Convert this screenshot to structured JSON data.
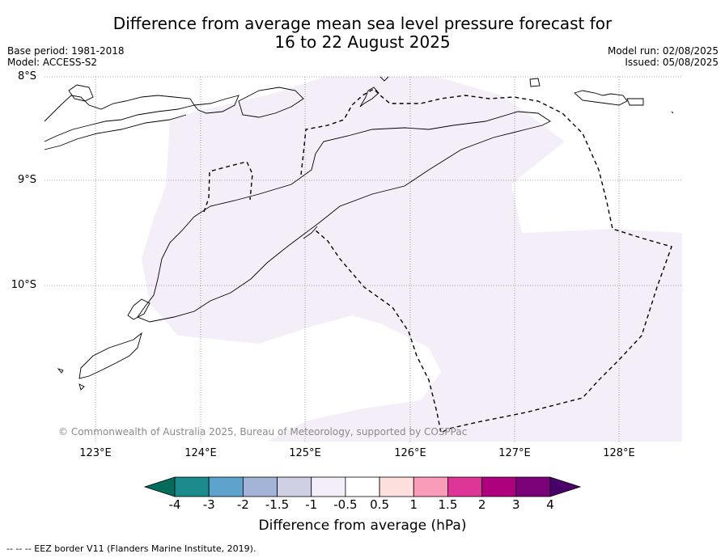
{
  "header": {
    "title_line1": "Difference from average mean sea level pressure forecast for",
    "title_line2": "16 to 22 August 2025",
    "base_period": "Base period: 1981-2018",
    "model": "Model: ACCESS-S2",
    "model_run": "Model run: 02/08/2025",
    "issued": "Issued: 05/08/2025"
  },
  "axes": {
    "lat_labels": [
      "8°S",
      "9°S",
      "10°S"
    ],
    "lon_labels": [
      "123°E",
      "124°E",
      "125°E",
      "126°E",
      "127°E",
      "128°E"
    ]
  },
  "map": {
    "lon_range": [
      122.55,
      128.6
    ],
    "lat_range": [
      -11.5,
      -8.0
    ],
    "anomaly_class_shown": "-1 to -0.5",
    "anomaly_fill_color": "#f3eef7",
    "eez_border_style": "dashed"
  },
  "copyright": "© Commonwealth of Australia 2025, Bureau of Meteorology, supported by COSPPac",
  "colorbar": {
    "ticks": [
      "-4",
      "-3",
      "-2",
      "-1.5",
      "-1",
      "-0.5",
      "0.5",
      "1",
      "1.5",
      "2",
      "3",
      "4"
    ],
    "colors": [
      "#1b8a8c",
      "#5da3cb",
      "#a3b4d8",
      "#cfd0e3",
      "#f3eef7",
      "#ffffff",
      "#fde0dd",
      "#f99cb9",
      "#dd3497",
      "#ae017e",
      "#7a0177"
    ],
    "under_color": "#016c59",
    "over_color": "#49006a",
    "label": "Difference from average (hPa)"
  },
  "footer": "--  --  -- EEZ border V11 (Flanders Marine Institute, 2019)."
}
